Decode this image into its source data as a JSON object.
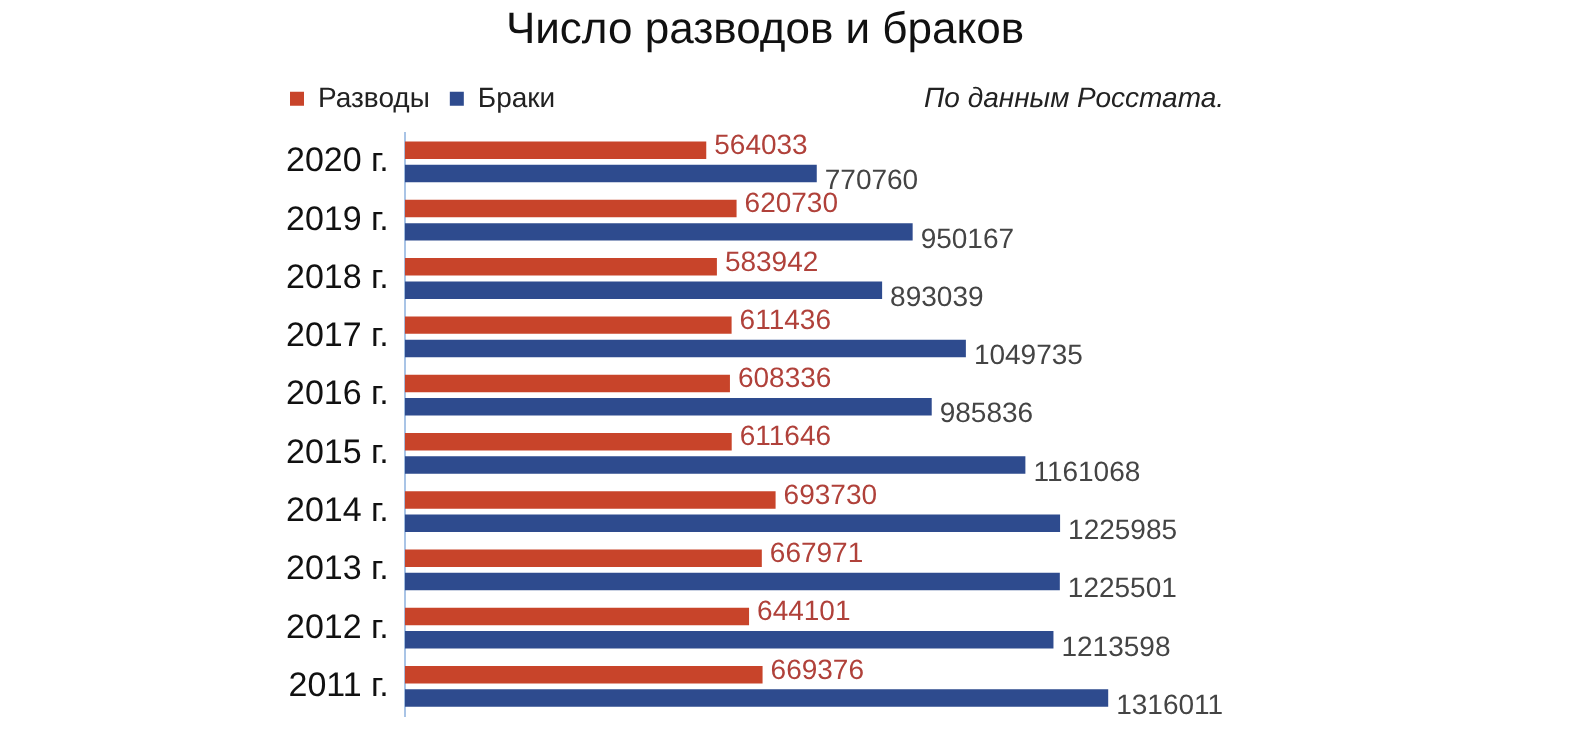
{
  "chart_data": {
    "type": "bar",
    "orientation": "horizontal",
    "title": "Число разводов и браков",
    "annotations": [
      "По данным Росстата."
    ],
    "categories": [
      "2020 г.",
      "2019 г.",
      "2018 г.",
      "2017 г.",
      "2016 г.",
      "2015 г.",
      "2014 г.",
      "2013 г.",
      "2012 г.",
      "2011 г."
    ],
    "series": [
      {
        "name": "Разводы",
        "color": "#c8442a",
        "values": [
          564033,
          620730,
          583942,
          611436,
          608336,
          611646,
          693730,
          667971,
          644101,
          669376
        ]
      },
      {
        "name": "Браки",
        "color": "#2e4b8e",
        "values": [
          770760,
          950167,
          893039,
          1049735,
          985836,
          1161068,
          1225985,
          1225501,
          1213598,
          1316011
        ]
      }
    ],
    "data_labels": true,
    "grid": false,
    "legend": "top left"
  }
}
